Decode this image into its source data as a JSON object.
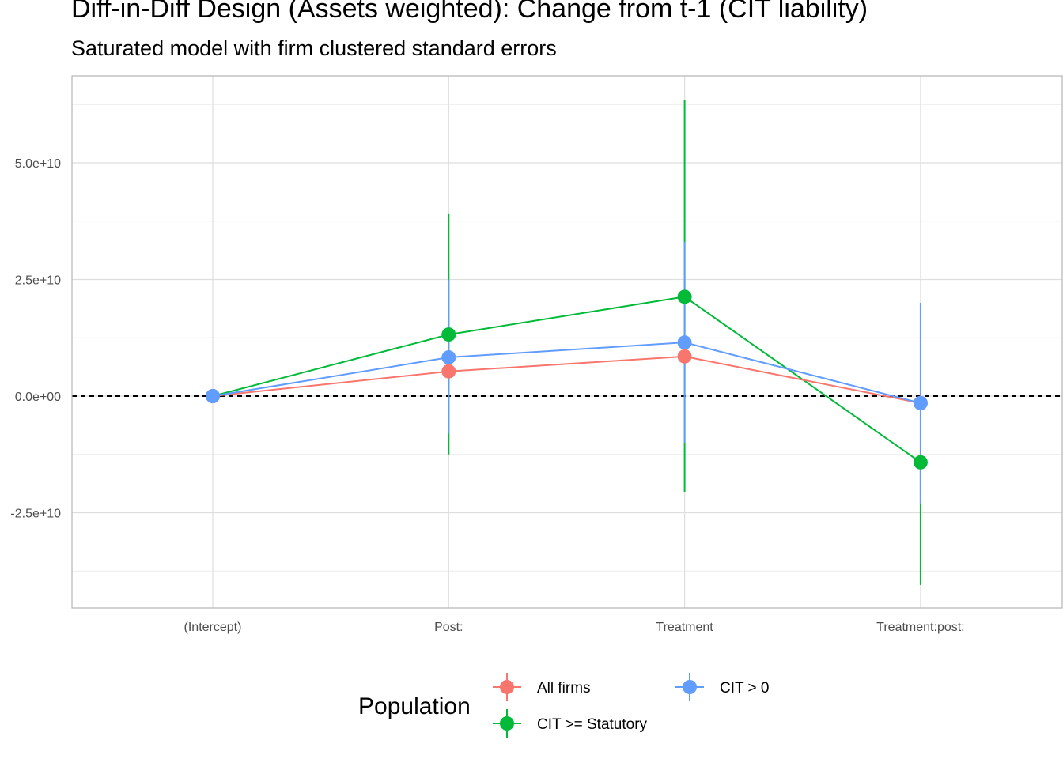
{
  "chart_data": {
    "type": "scatter",
    "title": "Diff-in-Diff Design (Assets weighted): Change from t-1 (CIT liability)",
    "subtitle": "Saturated model with firm clustered standard errors",
    "xlabel": "",
    "ylabel": "",
    "categories": [
      "(Intercept)",
      "Post:",
      "Treatment",
      "Treatment:post:"
    ],
    "y_ticks": [
      -25000000000,
      0,
      25000000000,
      50000000000
    ],
    "y_tick_labels": [
      "-2.5e+10",
      "0.0e+00",
      "2.5e+10",
      "5.0e+10"
    ],
    "ylim": [
      -45000000000,
      69000000000
    ],
    "reference_line": 0,
    "grid": true,
    "legend_title": "Population",
    "legend_position": "bottom",
    "series": [
      {
        "name": "All firms",
        "color": "#F8766D",
        "values": [
          0,
          5300000000,
          8500000000,
          -1500000000
        ],
        "lower": [
          0,
          0,
          0,
          -1500000000
        ],
        "upper": [
          0,
          0,
          0,
          -1500000000
        ]
      },
      {
        "name": "CIT >= Statutory",
        "color": "#00BA38",
        "values": [
          0,
          13200000000,
          21300000000,
          -14200000000
        ],
        "lower": [
          0,
          -12500000000,
          -20500000000,
          -40500000000
        ],
        "upper": [
          0,
          39000000000,
          63500000000,
          -14200000000
        ]
      },
      {
        "name": "CIT > 0",
        "color": "#619CFF",
        "values": [
          0,
          8300000000,
          11500000000,
          -1500000000
        ],
        "lower": [
          0,
          -8000000000,
          -10000000000,
          -23000000000
        ],
        "upper": [
          0,
          25000000000,
          33000000000,
          20000000000
        ]
      }
    ]
  }
}
